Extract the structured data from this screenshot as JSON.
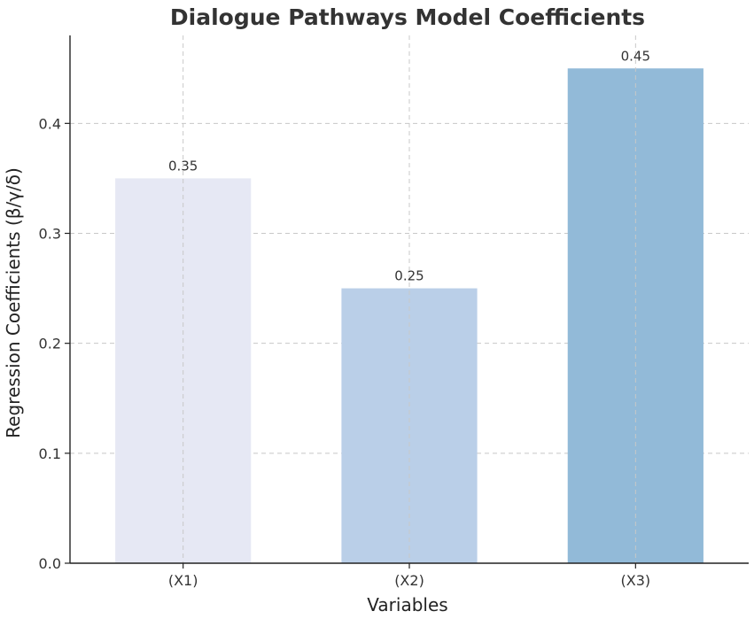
{
  "chart_data": {
    "type": "bar",
    "title": "Dialogue Pathways Model Coefficients",
    "xlabel": "Variables",
    "ylabel": "Regression Coefficients (β/γ/δ)",
    "categories": [
      "(X1)",
      "(X2)",
      "(X3)"
    ],
    "values": [
      0.35,
      0.25,
      0.45
    ],
    "data_labels": [
      "0.35",
      "0.25",
      "0.45"
    ],
    "bar_colors": [
      "#e6e8f4",
      "#bacfe8",
      "#92bad8"
    ],
    "ylim": [
      0,
      0.48
    ],
    "yticks": [
      0.0,
      0.1,
      0.2,
      0.3,
      0.4
    ],
    "ytick_labels": [
      "0.0",
      "0.1",
      "0.2",
      "0.3",
      "0.4"
    ],
    "grid": true,
    "legend": "none"
  }
}
